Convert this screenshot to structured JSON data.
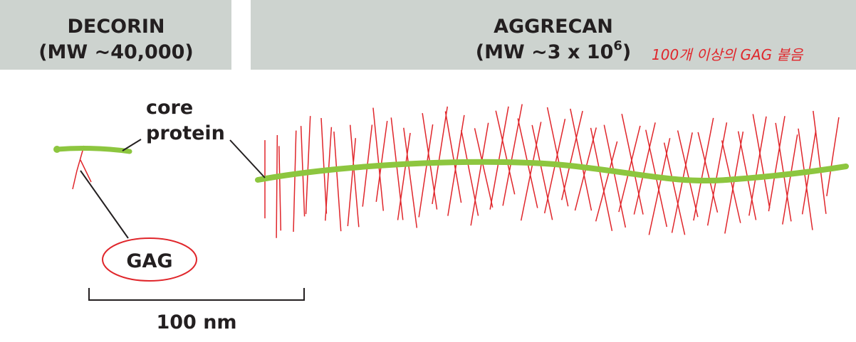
{
  "decorin": {
    "title": "DECORIN",
    "mw": "(MW ~40,000)"
  },
  "aggrecan": {
    "title": "AGGRECAN",
    "mw": {
      "text": "(MW ~3 x 10",
      "superscript": "6",
      "suffix": ")"
    }
  },
  "labels": {
    "core_line1": "core",
    "core_line2": "protein",
    "gag": "GAG",
    "scale": "100 nm"
  },
  "annotation": "100개 이상의 GAG 붙음"
}
